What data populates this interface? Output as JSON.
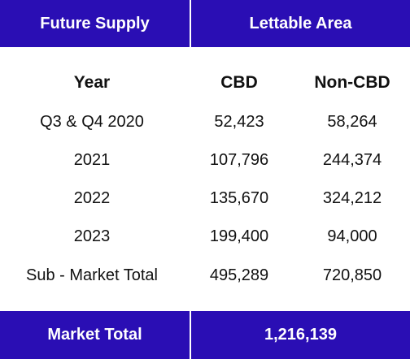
{
  "header": {
    "left": "Future Supply",
    "right": "Lettable Area"
  },
  "columns": {
    "year": "Year",
    "cbd": "CBD",
    "noncbd": "Non-CBD"
  },
  "rows": [
    {
      "year": "Q3 & Q4 2020",
      "cbd": "52,423",
      "noncbd": "58,264"
    },
    {
      "year": "2021",
      "cbd": "107,796",
      "noncbd": "244,374"
    },
    {
      "year": "2022",
      "cbd": "135,670",
      "noncbd": "324,212"
    },
    {
      "year": "2023",
      "cbd": "199,400",
      "noncbd": "94,000"
    },
    {
      "year": "Sub - Market Total",
      "cbd": "495,289",
      "noncbd": "720,850"
    }
  ],
  "footer": {
    "label": "Market Total",
    "value": "1,216,139"
  },
  "colors": {
    "band": "#2a0eb4",
    "band_text": "#ffffff",
    "body_text": "#111111"
  }
}
